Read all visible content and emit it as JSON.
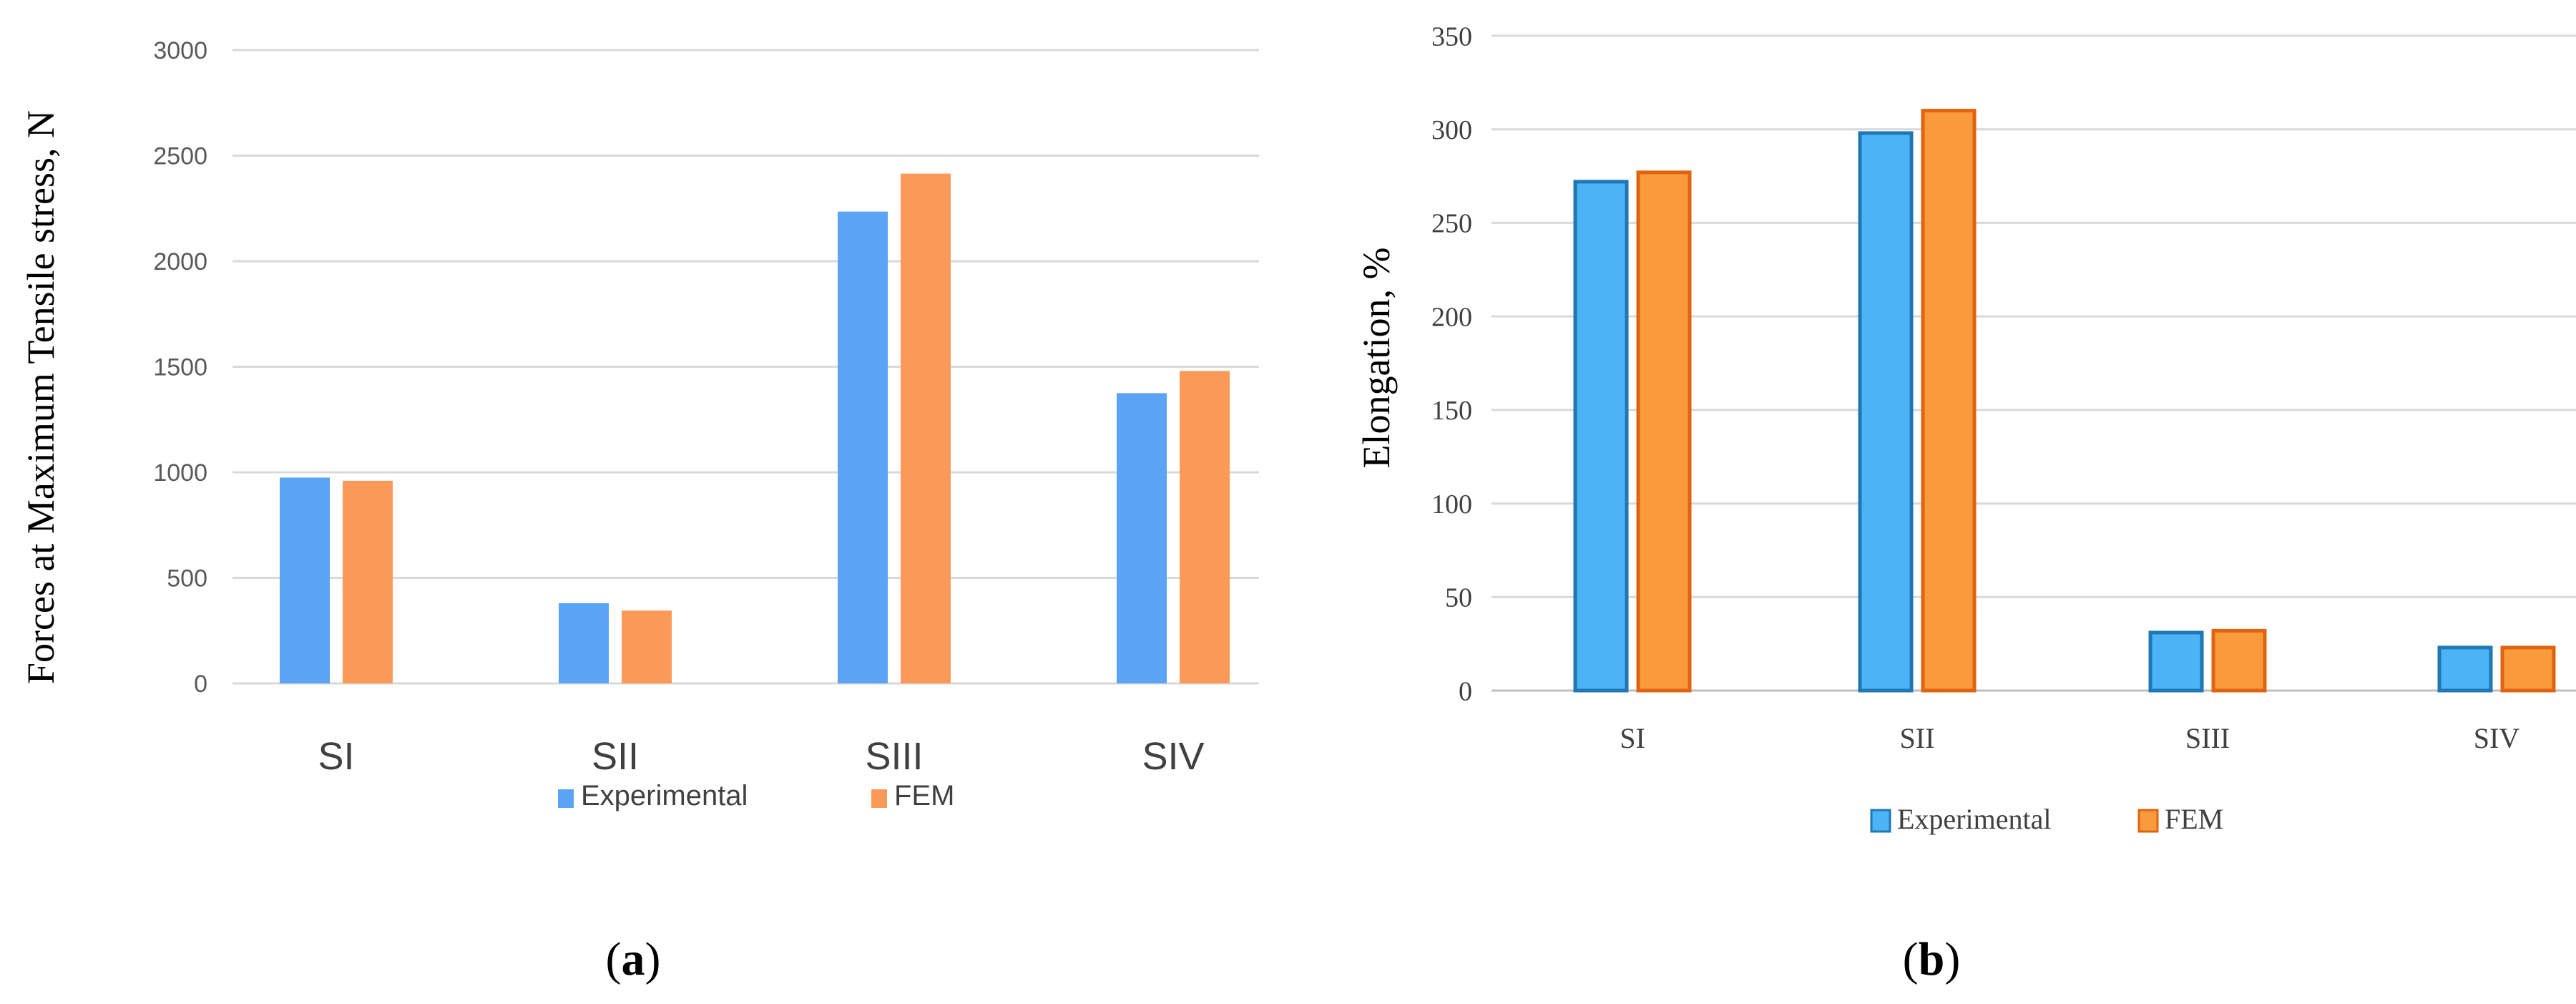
{
  "chart_data": [
    {
      "type": "bar",
      "panel_label": "a",
      "ylabel": "Forces at Maximum Tensile stress, N",
      "xlabel": "",
      "categories": [
        "SI",
        "SII",
        "SIII",
        "SIV"
      ],
      "series": [
        {
          "name": "Experimental",
          "values": [
            975,
            380,
            2235,
            1375
          ],
          "color": "#5ba3f5"
        },
        {
          "name": "FEM",
          "values": [
            960,
            345,
            2415,
            1480
          ],
          "color": "#fb9a58"
        }
      ],
      "ylim": [
        0,
        3000
      ],
      "yticks": [
        "0",
        "500",
        "1000",
        "1500",
        "2000",
        "2500",
        "3000"
      ],
      "grid": true,
      "legend": "bottom"
    },
    {
      "type": "bar",
      "panel_label": "b",
      "ylabel": "Elongation, %",
      "xlabel": "",
      "categories": [
        "SI",
        "SII",
        "SIII",
        "SIV"
      ],
      "series": [
        {
          "name": "Experimental",
          "values": [
            272,
            298,
            31,
            23
          ],
          "color": "#4db3f7",
          "edge": "#1f77b4"
        },
        {
          "name": "FEM",
          "values": [
            277,
            310,
            32,
            23
          ],
          "color": "#f99a3c",
          "edge": "#e0640f"
        }
      ],
      "ylim": [
        0,
        350
      ],
      "yticks": [
        "0",
        "50",
        "100",
        "150",
        "200",
        "250",
        "300",
        "350"
      ],
      "grid": true,
      "legend": "bottom"
    }
  ]
}
